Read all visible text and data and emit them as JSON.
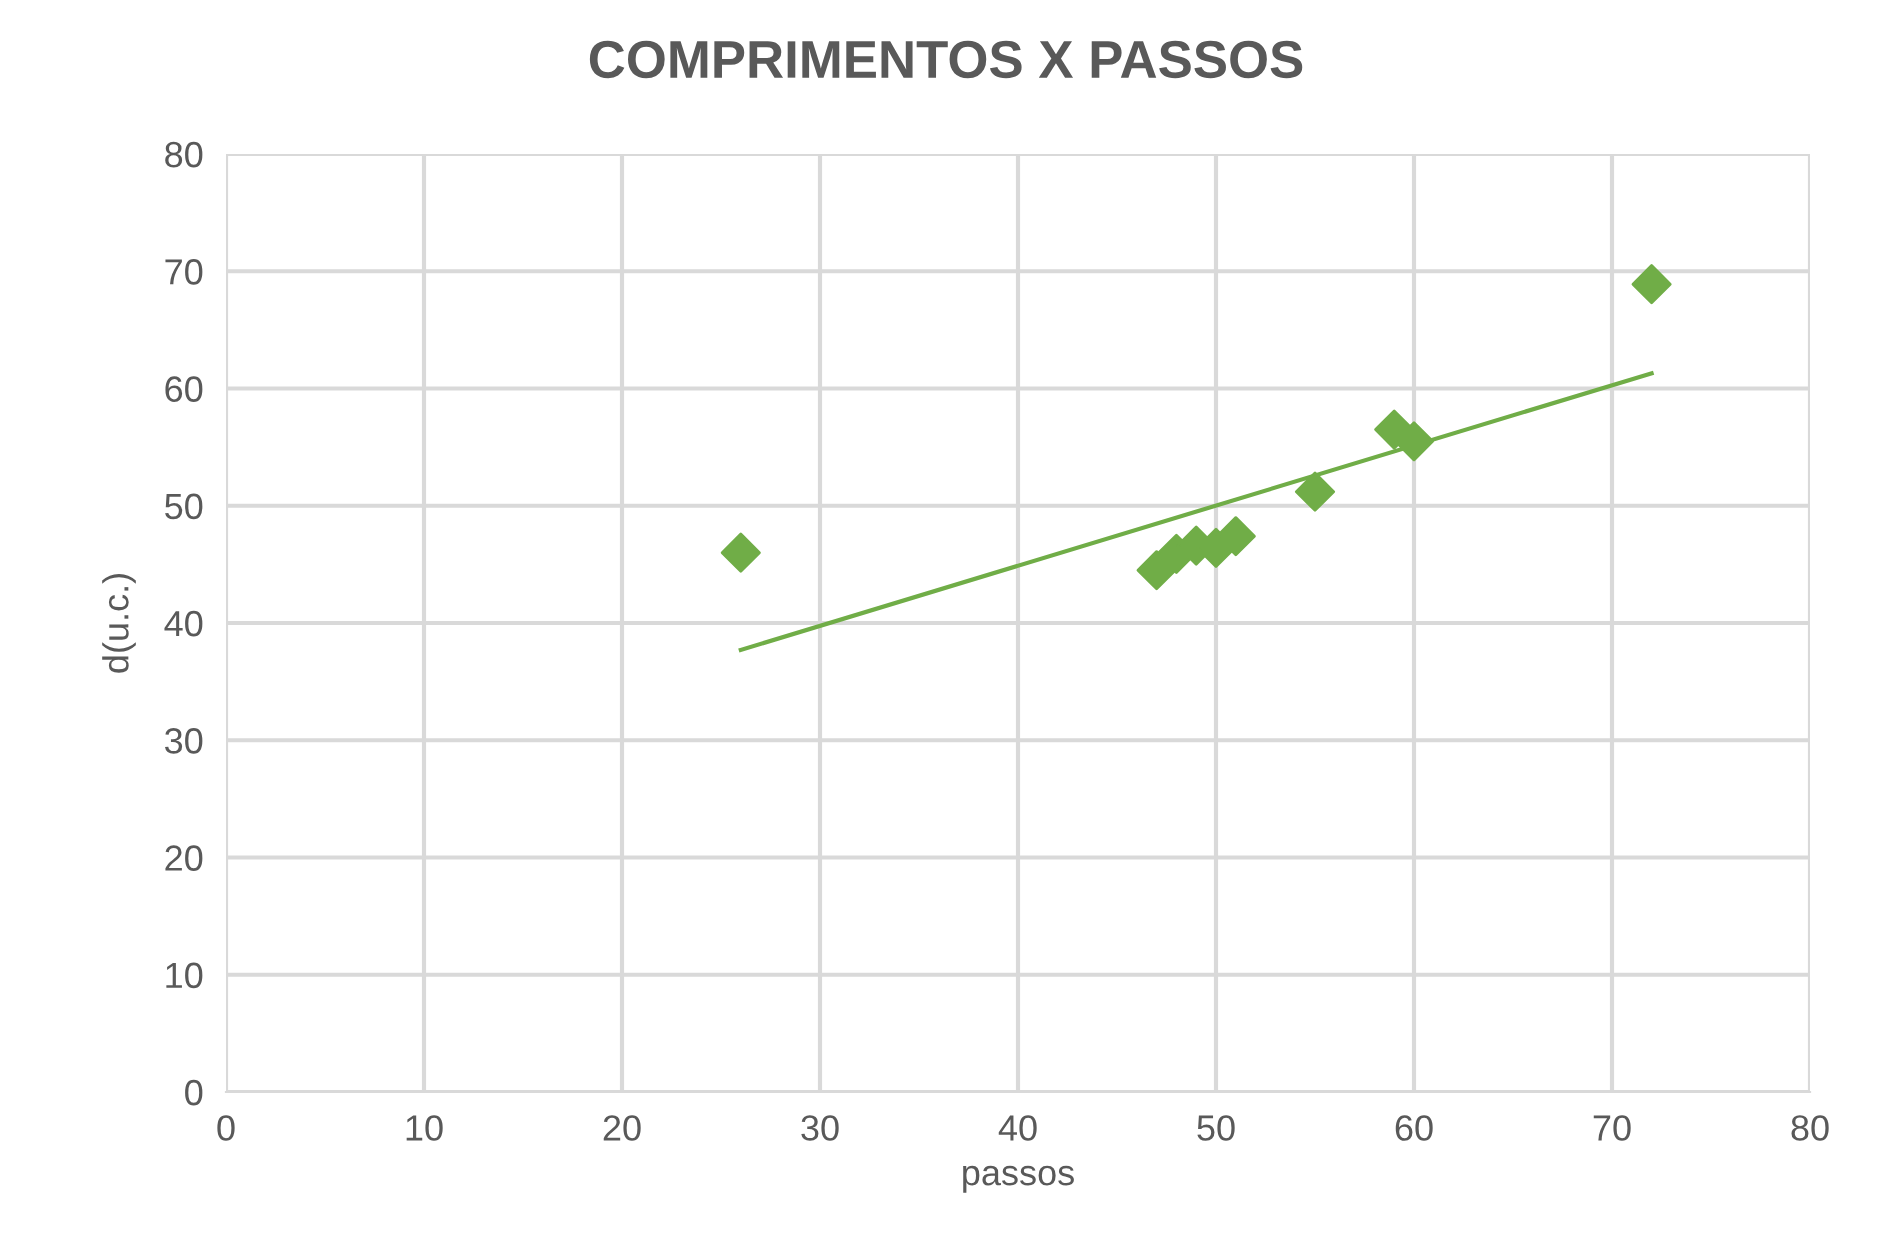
{
  "chart_data": {
    "type": "scatter",
    "title": "COMPRIMENTOS X PASSOS",
    "xlabel": "passos",
    "ylabel": "d(u.c.)",
    "xlim": [
      0,
      80
    ],
    "xticks": [
      0,
      10,
      20,
      30,
      40,
      50,
      60,
      70,
      80
    ],
    "ylim": [
      0,
      80
    ],
    "yticks": [
      0,
      10,
      20,
      30,
      40,
      50,
      60,
      70,
      80
    ],
    "grid": true,
    "marker": "diamond",
    "series": [
      {
        "color": "#70ad47",
        "x": [
          26,
          47,
          48,
          49,
          50,
          51,
          55,
          59,
          60,
          72
        ],
        "values": [
          46,
          44.5,
          45.9,
          46.6,
          46.4,
          47.4,
          51.2,
          56.5,
          55.5,
          68.9
        ]
      },
      {
        "type": "line",
        "color": "#70ad47",
        "marker": "none",
        "x": [
          26,
          72
        ],
        "values": [
          37.7,
          61.3
        ]
      }
    ]
  }
}
